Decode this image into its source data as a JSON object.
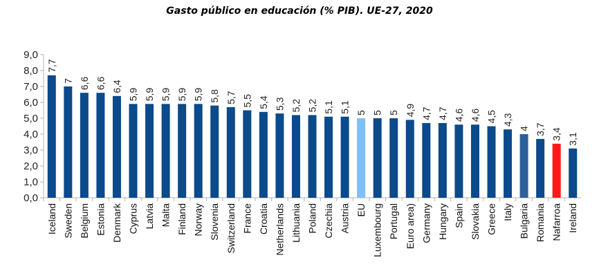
{
  "chart_data": {
    "type": "bar",
    "title": "Gasto público en educación (% PIB). UE-27, 2020",
    "xlabel": "",
    "ylabel": "",
    "ylim": [
      0,
      9
    ],
    "yticks": [
      "0,0",
      "1,0",
      "2,0",
      "3,0",
      "4,0",
      "5,0",
      "6,0",
      "7,0",
      "8,0",
      "9,0"
    ],
    "grid": false,
    "categories": [
      "Iceland",
      "Sweden",
      "Belgium",
      "Estonia",
      "Denmark",
      "Cyprus",
      "Latvia",
      "Malta",
      "Finland",
      "Norway",
      "Slovenia",
      "Switzerland",
      "France",
      "Croatia",
      "Netherlands",
      "Lithuania",
      "Poland",
      "Czechia",
      "Austria",
      "EU",
      "Luxembourg",
      "Portugal",
      "Euro area)",
      "Germany",
      "Hungary",
      "Spain",
      "Slovakia",
      "Greece",
      "Italy",
      "Bulgaria",
      "Romania",
      "Nafarroa",
      "Ireland"
    ],
    "values": [
      7.7,
      7,
      6.6,
      6.6,
      6.4,
      5.9,
      5.9,
      5.9,
      5.9,
      5.9,
      5.8,
      5.7,
      5.5,
      5.4,
      5.3,
      5.2,
      5.2,
      5.1,
      5.1,
      5,
      5,
      5,
      4.9,
      4.7,
      4.7,
      4.6,
      4.6,
      4.5,
      4.3,
      4,
      3.7,
      3.4,
      3.1
    ],
    "data_labels": [
      "7,7",
      "7",
      "6,6",
      "6,6",
      "6,4",
      "5,9",
      "5,9",
      "5,9",
      "5,9",
      "5,9",
      "5,8",
      "5,7",
      "5,5",
      "5,4",
      "5,3",
      "5,2",
      "5,2",
      "5,1",
      "5,1",
      "5",
      "5",
      "5",
      "4,9",
      "4,7",
      "4,7",
      "4,6",
      "4,6",
      "4,5",
      "4,3",
      "4",
      "3,7",
      "3,4",
      "3,1"
    ],
    "colors": {
      "default": "#0b4a8b",
      "EU": "#7fbff5",
      "Bulgaria": "#2d5f9a",
      "Nafarroa": "#ff1a1a"
    }
  }
}
